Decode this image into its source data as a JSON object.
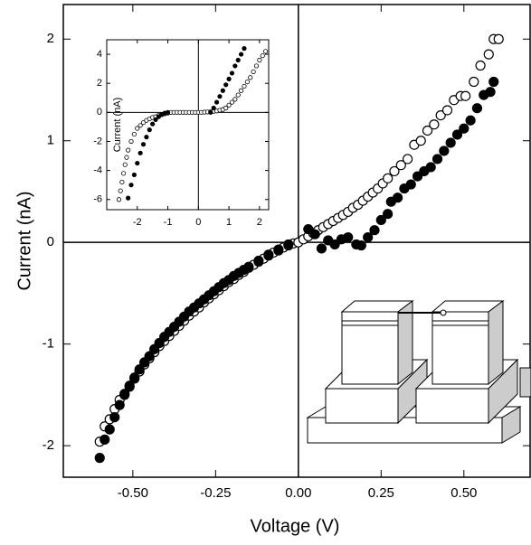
{
  "chart_data": [
    {
      "type": "scatter",
      "xlabel": "Voltage (V)",
      "ylabel": "Current (nA)",
      "xlim": [
        -0.71,
        0.7
      ],
      "ylim": [
        -2.31,
        2.34
      ],
      "xticks": [
        {
          "value": -0.5,
          "label": "-0.50"
        },
        {
          "value": -0.25,
          "label": "-0.25"
        },
        {
          "value": 0,
          "label": "0.00"
        },
        {
          "value": 0.25,
          "label": "0.25"
        },
        {
          "value": 0.5,
          "label": "0.50"
        }
      ],
      "yticks": [
        -2,
        -1,
        0,
        1,
        2
      ],
      "zero_lines": true,
      "series": [
        {
          "color": "#000000",
          "filled": false,
          "x": [
            -0.6,
            -0.585,
            -0.57,
            -0.555,
            -0.54,
            -0.525,
            -0.51,
            -0.495,
            -0.48,
            -0.465,
            -0.45,
            -0.435,
            -0.42,
            -0.405,
            -0.39,
            -0.375,
            -0.36,
            -0.345,
            -0.33,
            -0.315,
            -0.3,
            -0.285,
            -0.27,
            -0.255,
            -0.24,
            -0.225,
            -0.21,
            -0.195,
            -0.18,
            -0.165,
            -0.15,
            -0.135,
            -0.12,
            -0.105,
            -0.09,
            -0.075,
            -0.06,
            -0.045,
            -0.03,
            -0.015,
            0.0,
            0.015,
            0.03,
            0.045,
            0.06,
            0.075,
            0.09,
            0.105,
            0.12,
            0.135,
            0.15,
            0.165,
            0.18,
            0.195,
            0.21,
            0.225,
            0.24,
            0.255,
            0.27,
            0.29,
            0.31,
            0.33,
            0.35,
            0.37,
            0.39,
            0.41,
            0.43,
            0.45,
            0.47,
            0.49,
            0.505,
            0.53,
            0.55,
            0.575,
            0.59,
            0.605
          ],
          "values": [
            -1.96,
            -1.81,
            -1.74,
            -1.64,
            -1.55,
            -1.49,
            -1.41,
            -1.34,
            -1.27,
            -1.2,
            -1.14,
            -1.08,
            -1.02,
            -0.97,
            -0.92,
            -0.87,
            -0.82,
            -0.77,
            -0.72,
            -0.68,
            -0.64,
            -0.59,
            -0.55,
            -0.51,
            -0.47,
            -0.43,
            -0.39,
            -0.36,
            -0.32,
            -0.29,
            -0.25,
            -0.22,
            -0.19,
            -0.16,
            -0.13,
            -0.1,
            -0.08,
            -0.05,
            -0.03,
            -0.01,
            0.0,
            0.03,
            0.06,
            0.09,
            0.12,
            0.15,
            0.18,
            0.21,
            0.24,
            0.27,
            0.3,
            0.34,
            0.37,
            0.41,
            0.45,
            0.49,
            0.53,
            0.58,
            0.63,
            0.7,
            0.76,
            0.82,
            0.96,
            1.0,
            1.1,
            1.16,
            1.25,
            1.3,
            1.4,
            1.44,
            1.44,
            1.58,
            1.74,
            1.85,
            2.0,
            2.0
          ]
        },
        {
          "color": "#000000",
          "filled": true,
          "x": [
            -0.6,
            -0.585,
            -0.57,
            -0.555,
            -0.54,
            -0.525,
            -0.51,
            -0.495,
            -0.48,
            -0.465,
            -0.45,
            -0.435,
            -0.42,
            -0.405,
            -0.39,
            -0.375,
            -0.36,
            -0.345,
            -0.33,
            -0.315,
            -0.3,
            -0.285,
            -0.27,
            -0.255,
            -0.24,
            -0.225,
            -0.21,
            -0.195,
            -0.18,
            -0.165,
            -0.15,
            -0.12,
            -0.09,
            -0.06,
            -0.03,
            0.03,
            0.05,
            0.07,
            0.09,
            0.11,
            0.13,
            0.15,
            0.175,
            0.19,
            0.21,
            0.23,
            0.25,
            0.27,
            0.28,
            0.3,
            0.32,
            0.34,
            0.36,
            0.38,
            0.4,
            0.42,
            0.44,
            0.46,
            0.48,
            0.5,
            0.52,
            0.54,
            0.56,
            0.58,
            0.59
          ],
          "values": [
            -2.12,
            -1.94,
            -1.84,
            -1.72,
            -1.6,
            -1.5,
            -1.42,
            -1.33,
            -1.25,
            -1.18,
            -1.12,
            -1.05,
            -0.99,
            -0.93,
            -0.88,
            -0.83,
            -0.78,
            -0.73,
            -0.68,
            -0.64,
            -0.6,
            -0.56,
            -0.52,
            -0.48,
            -0.44,
            -0.4,
            -0.37,
            -0.33,
            -0.3,
            -0.27,
            -0.24,
            -0.18,
            -0.12,
            -0.07,
            -0.02,
            0.13,
            0.08,
            -0.06,
            0.02,
            -0.02,
            0.03,
            0.05,
            -0.02,
            -0.03,
            0.05,
            0.12,
            0.22,
            0.28,
            0.4,
            0.44,
            0.53,
            0.57,
            0.65,
            0.7,
            0.74,
            0.82,
            0.9,
            0.98,
            1.06,
            1.12,
            1.2,
            1.32,
            1.45,
            1.48,
            1.58
          ]
        }
      ]
    },
    {
      "type": "scatter",
      "ylabel": "Current (nA)",
      "xlim": [
        -3.0,
        2.3
      ],
      "ylim": [
        -6.7,
        5.0
      ],
      "xticks": [
        -2,
        -1,
        0,
        1,
        2
      ],
      "yticks": [
        -6,
        -4,
        -2,
        0,
        2,
        4
      ],
      "zero_lines": true,
      "series": [
        {
          "color": "#000000",
          "filled": false,
          "x": [
            -2.6,
            -2.55,
            -2.5,
            -2.45,
            -2.4,
            -2.35,
            -2.3,
            -2.2,
            -2.1,
            -2.0,
            -1.9,
            -1.8,
            -1.7,
            -1.6,
            -1.5,
            -1.4,
            -1.3,
            -1.2,
            -1.1,
            -1.0,
            -0.9,
            -0.8,
            -0.7,
            -0.6,
            -0.5,
            -0.4,
            -0.3,
            -0.2,
            -0.1,
            0.0,
            0.1,
            0.2,
            0.3,
            0.4,
            0.5,
            0.6,
            0.7,
            0.8,
            0.9,
            1.0,
            1.1,
            1.2,
            1.3,
            1.4,
            1.5,
            1.6,
            1.7,
            1.8,
            1.9,
            2.0,
            2.1,
            2.2
          ],
          "values": [
            -6.0,
            -5.4,
            -4.8,
            -4.2,
            -3.6,
            -3.1,
            -2.6,
            -2.0,
            -1.5,
            -1.1,
            -0.9,
            -0.7,
            -0.55,
            -0.45,
            -0.35,
            -0.3,
            -0.2,
            -0.15,
            -0.1,
            -0.05,
            0,
            0,
            0,
            0,
            0,
            0,
            0,
            0,
            0,
            0,
            0,
            0.02,
            0.03,
            0.05,
            0.07,
            0.1,
            0.15,
            0.2,
            0.3,
            0.5,
            0.7,
            0.9,
            1.2,
            1.5,
            1.8,
            2.1,
            2.4,
            2.8,
            3.2,
            3.6,
            3.9,
            4.2
          ]
        },
        {
          "color": "#000000",
          "filled": true,
          "x": [
            -2.3,
            -2.2,
            -2.1,
            -2.0,
            -1.9,
            -1.8,
            -1.7,
            -1.6,
            -1.5,
            -1.4,
            -1.3,
            -1.2,
            -1.1,
            -1.0,
            0.4,
            0.5,
            0.6,
            0.7,
            0.8,
            0.9,
            1.0,
            1.1,
            1.2,
            1.3,
            1.4,
            1.5
          ],
          "values": [
            -5.9,
            -5.0,
            -4.3,
            -3.5,
            -2.8,
            -2.2,
            -1.7,
            -1.2,
            -0.8,
            -0.5,
            -0.3,
            -0.15,
            -0.05,
            0,
            0,
            0.3,
            0.7,
            1.1,
            1.5,
            1.9,
            2.3,
            2.7,
            3.2,
            3.6,
            4.0,
            4.4
          ]
        }
      ]
    }
  ]
}
